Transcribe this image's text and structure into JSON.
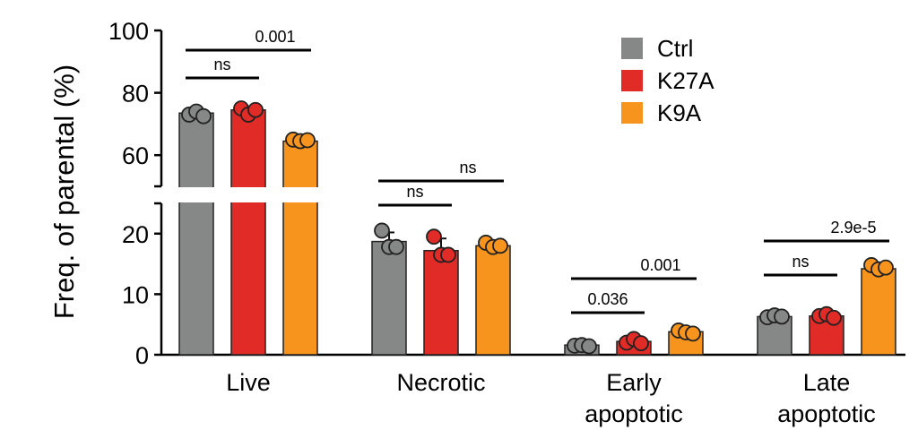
{
  "chart_data": {
    "type": "bar",
    "ylabel": "Freq. of parental (%)",
    "y_axis_break": {
      "lower_range": [
        0,
        25
      ],
      "upper_range": [
        50,
        100
      ]
    },
    "ylim": [
      0,
      100
    ],
    "yticks_lower": [
      0,
      10,
      20
    ],
    "yticks_upper": [
      60,
      80,
      100
    ],
    "categories": [
      {
        "lines": [
          "Live"
        ]
      },
      {
        "lines": [
          "Necrotic"
        ]
      },
      {
        "lines": [
          "Early",
          "apoptotic"
        ]
      },
      {
        "lines": [
          "Late",
          "apoptotic"
        ]
      }
    ],
    "series": [
      {
        "name": "Ctrl",
        "color": "#858886",
        "values": [
          73.5,
          18.7,
          1.6,
          6.3
        ],
        "errors": [
          1.0,
          1.5,
          0.2,
          0.4
        ],
        "points": [
          [
            73,
            74,
            72.5
          ],
          [
            20.5,
            17.8,
            17.8
          ],
          [
            1.5,
            1.6,
            1.4
          ],
          [
            6.2,
            6.5,
            6.3
          ]
        ]
      },
      {
        "name": "K27A",
        "color": "#e12b27",
        "values": [
          74.5,
          17.2,
          2.2,
          6.4
        ],
        "errors": [
          1.0,
          2.0,
          0.4,
          0.4
        ],
        "points": [
          [
            75,
            73,
            74.5
          ],
          [
            19.5,
            16.5,
            16.5
          ],
          [
            2.0,
            2.6,
            1.9
          ],
          [
            6.4,
            6.7,
            6.1
          ]
        ]
      },
      {
        "name": "K9A",
        "color": "#f7941d",
        "values": [
          64.5,
          18.0,
          3.8,
          14.2
        ],
        "errors": [
          0.7,
          0.8,
          0.4,
          0.5
        ],
        "points": [
          [
            65,
            64.5,
            64.8
          ],
          [
            18.5,
            17.8,
            18.0
          ],
          [
            4.0,
            3.7,
            3.5
          ],
          [
            14.8,
            14.1,
            14.4
          ]
        ]
      }
    ],
    "significance": [
      {
        "group": 0,
        "from": "Ctrl",
        "to": "K27A",
        "label": "ns",
        "level": 1
      },
      {
        "group": 0,
        "from": "Ctrl",
        "to": "K9A",
        "label": "0.001",
        "level": 2
      },
      {
        "group": 1,
        "from": "Ctrl",
        "to": "K27A",
        "label": "ns",
        "level": 1
      },
      {
        "group": 1,
        "from": "Ctrl",
        "to": "K9A",
        "label": "ns",
        "level": 2
      },
      {
        "group": 2,
        "from": "Ctrl",
        "to": "K27A",
        "label": "0.036",
        "level": 1
      },
      {
        "group": 2,
        "from": "Ctrl",
        "to": "K9A",
        "label": "0.001",
        "level": 2
      },
      {
        "group": 3,
        "from": "Ctrl",
        "to": "K27A",
        "label": "ns",
        "level": 1
      },
      {
        "group": 3,
        "from": "Ctrl",
        "to": "K9A",
        "label": "2.9e-5",
        "level": 2
      }
    ],
    "legend_position": "top-right"
  }
}
